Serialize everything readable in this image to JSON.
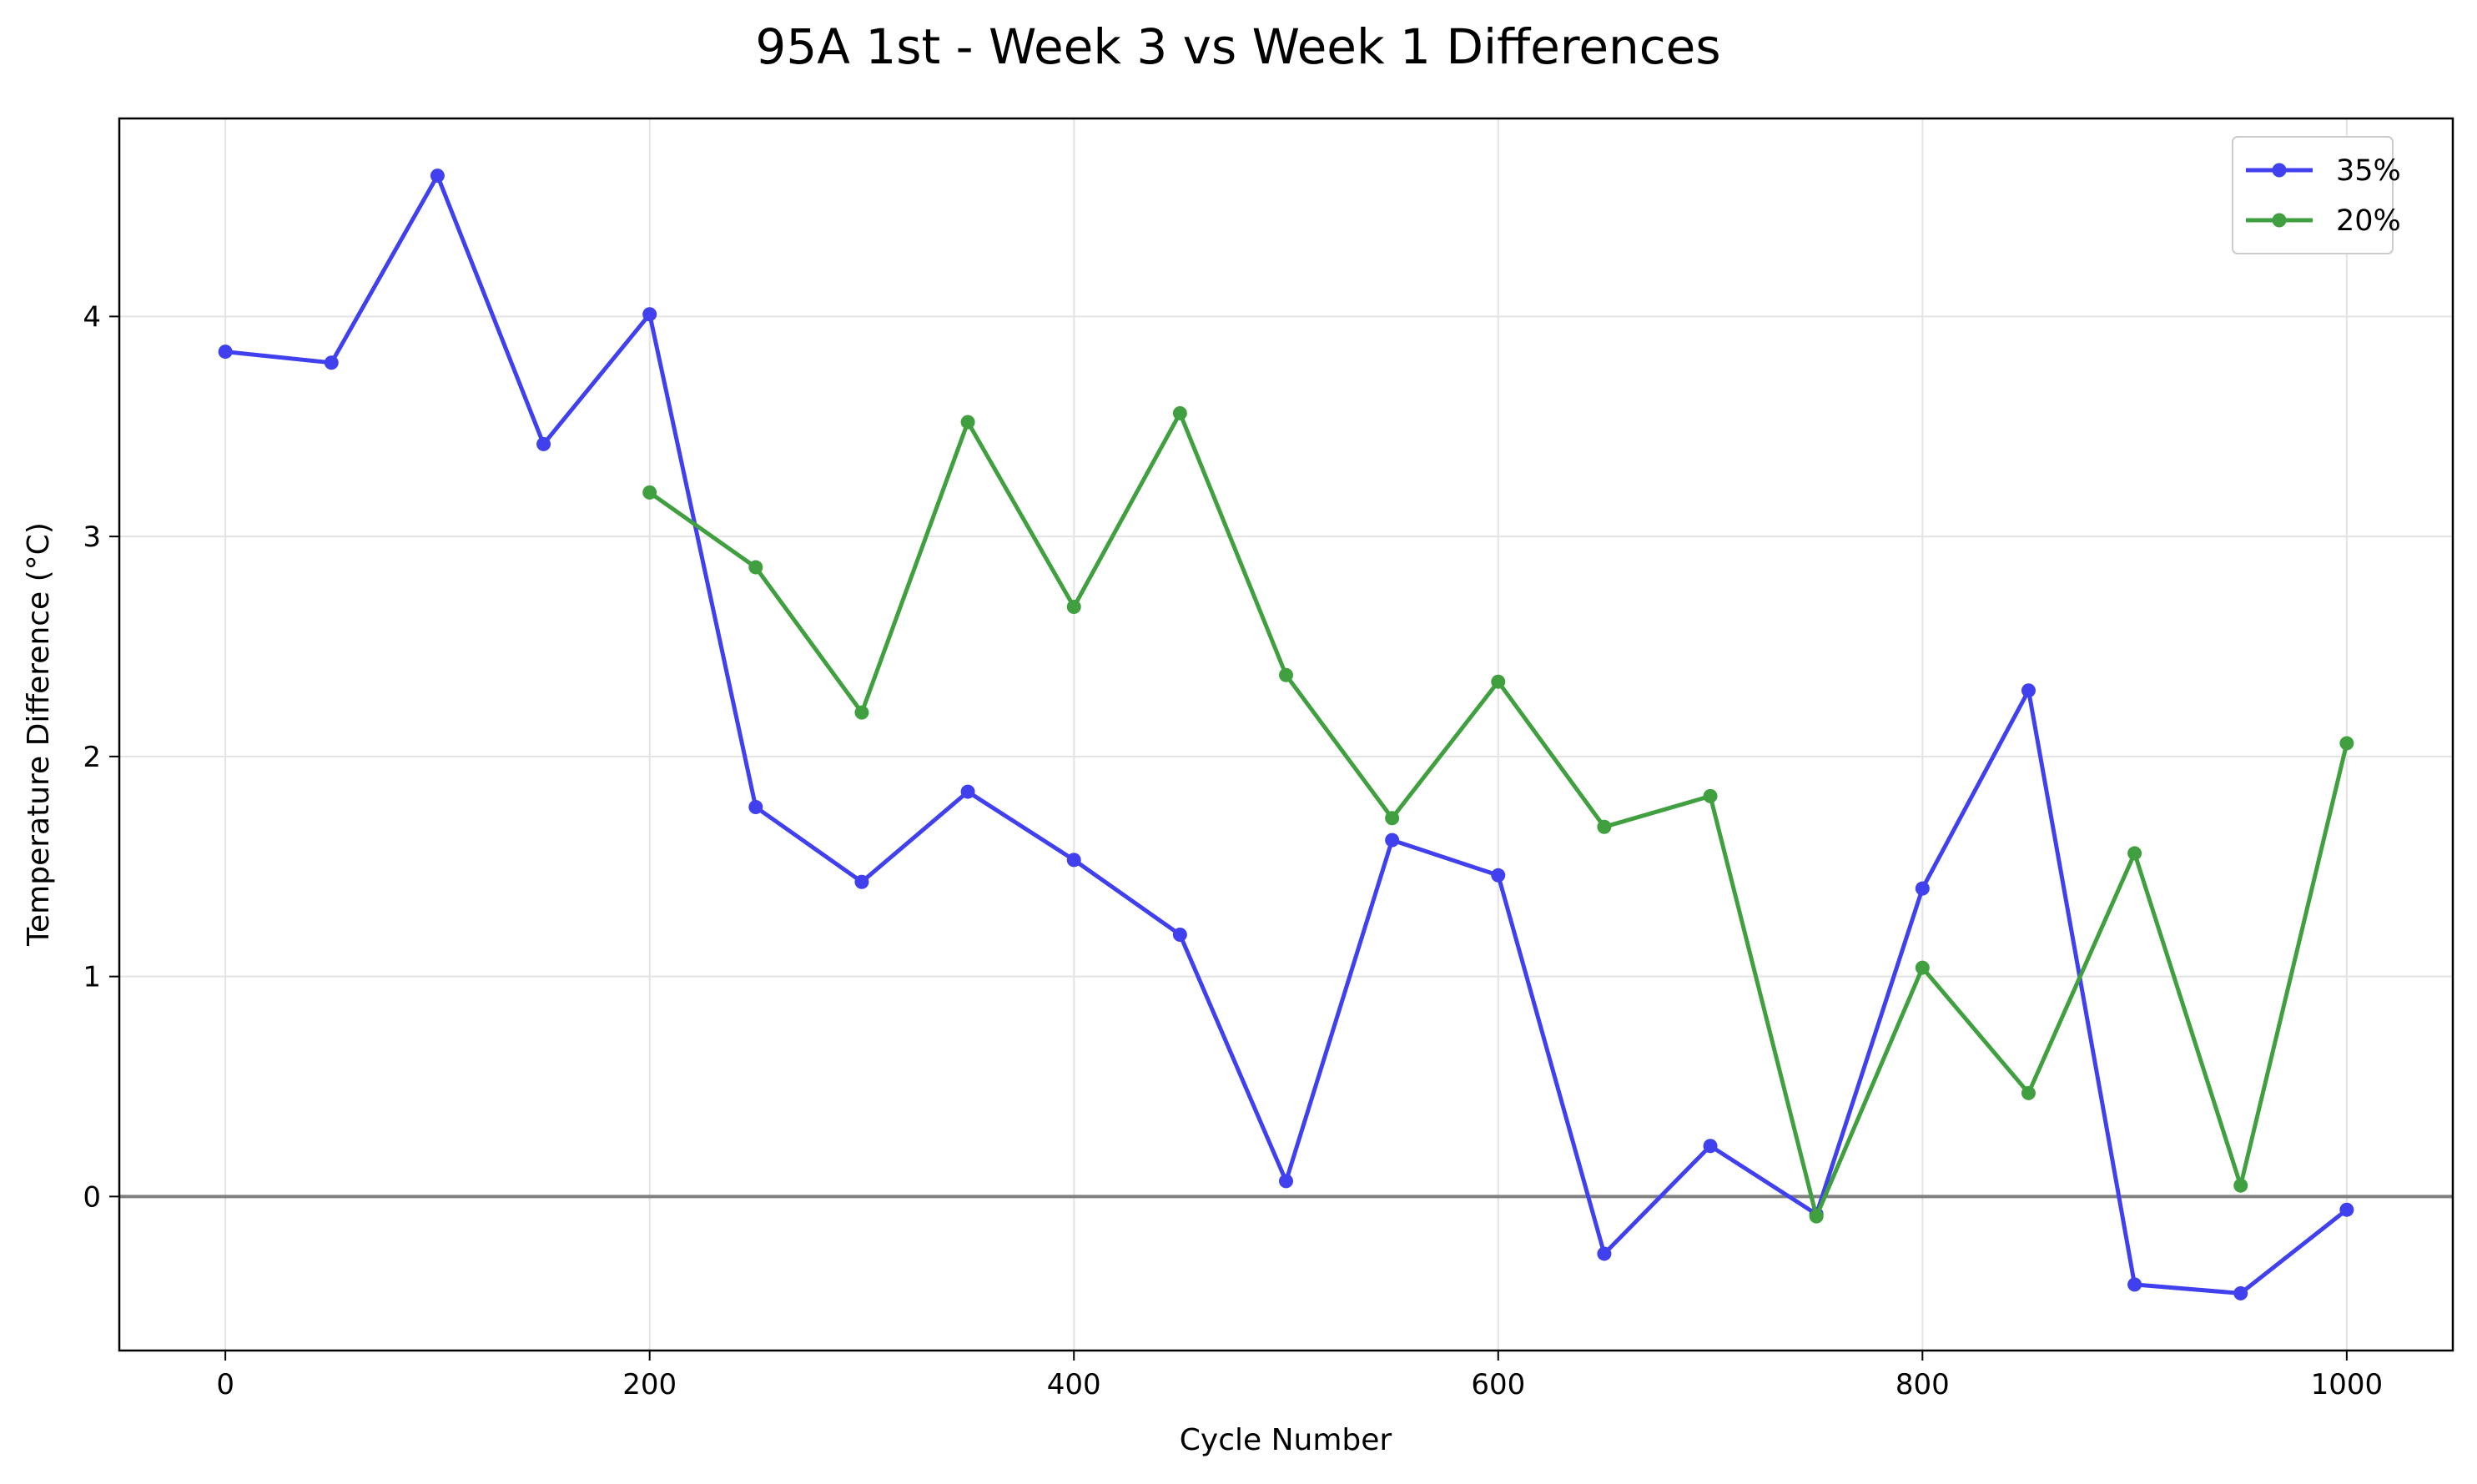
{
  "chart_data": {
    "type": "line",
    "title": "95A 1st - Week 3 vs Week 1 Differences",
    "xlabel": "Cycle Number",
    "ylabel": "Temperature Difference (°C)",
    "xlim": [
      -50,
      1050
    ],
    "ylim": [
      -0.7,
      4.9
    ],
    "xticks": [
      0,
      200,
      400,
      600,
      800,
      1000
    ],
    "yticks": [
      0,
      1,
      2,
      3,
      4
    ],
    "grid": true,
    "legend_position": "top-right",
    "reference_line": {
      "y": 0,
      "color": "#808080"
    },
    "series": [
      {
        "name": "35%",
        "color": "#4040ee",
        "x": [
          0,
          50,
          100,
          150,
          200,
          250,
          300,
          350,
          400,
          450,
          500,
          550,
          600,
          650,
          700,
          750,
          800,
          850,
          900,
          950,
          1000
        ],
        "values": [
          3.84,
          3.79,
          4.64,
          3.42,
          4.01,
          1.77,
          1.43,
          1.84,
          1.53,
          1.19,
          0.07,
          1.62,
          1.46,
          -0.26,
          0.23,
          -0.08,
          1.4,
          2.3,
          -0.4,
          -0.44,
          -0.06
        ]
      },
      {
        "name": "20%",
        "color": "#40a040",
        "x": [
          200,
          250,
          300,
          350,
          400,
          450,
          500,
          550,
          600,
          650,
          700,
          750,
          800,
          850,
          900,
          950,
          1000
        ],
        "values": [
          3.2,
          2.86,
          2.2,
          3.52,
          2.68,
          3.56,
          2.37,
          1.72,
          2.34,
          1.68,
          1.82,
          -0.09,
          1.04,
          0.47,
          1.56,
          0.05,
          2.06
        ]
      }
    ]
  }
}
